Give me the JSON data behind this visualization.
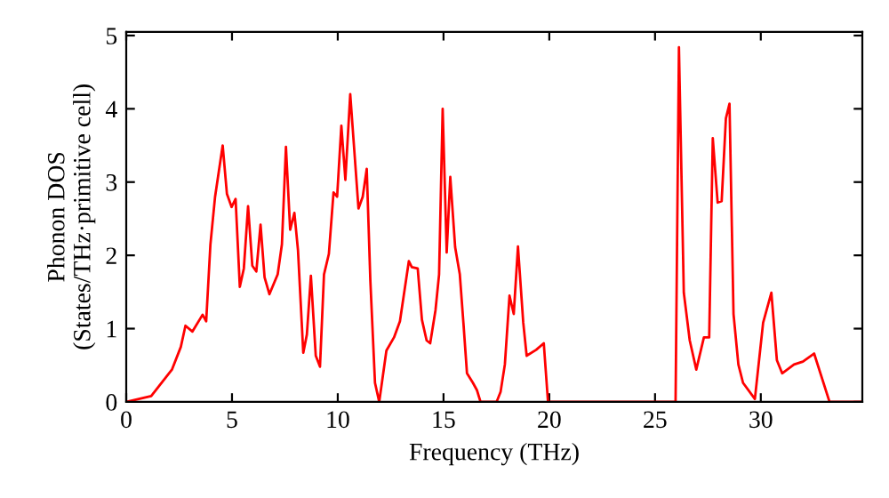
{
  "chart_data": {
    "type": "line",
    "xlabel": "Frequency (THz)",
    "ylabel": "Phonon DOS\n(States/THz·primitive cell)",
    "xlim": [
      0,
      34.8
    ],
    "ylim": [
      0,
      5.05
    ],
    "xticks": [
      0,
      5,
      10,
      15,
      20,
      25,
      30
    ],
    "yticks": [
      0,
      1,
      2,
      3,
      4,
      5
    ],
    "grid": false,
    "legend": false,
    "marker": "none",
    "line_style": "solid",
    "series": [
      {
        "color": "#ff0000",
        "x": [
          0,
          1.18,
          2.16,
          2.58,
          2.8,
          3.13,
          3.61,
          3.78,
          3.98,
          4.2,
          4.56,
          4.76,
          4.98,
          5.17,
          5.37,
          5.56,
          5.76,
          5.96,
          6.15,
          6.35,
          6.54,
          6.77,
          7.16,
          7.36,
          7.55,
          7.75,
          7.95,
          8.12,
          8.37,
          8.54,
          8.73,
          8.96,
          9.16,
          9.35,
          9.58,
          9.8,
          9.97,
          10.17,
          10.36,
          10.59,
          10.78,
          10.98,
          11.18,
          11.37,
          11.54,
          11.76,
          11.96,
          12.3,
          12.66,
          12.94,
          13.36,
          13.5,
          13.78,
          13.98,
          14.2,
          14.37,
          14.62,
          14.79,
          14.96,
          15.15,
          15.32,
          15.55,
          15.77,
          15.94,
          16.11,
          16.39,
          16.58,
          16.75,
          17.51,
          17.7,
          17.9,
          18.12,
          18.32,
          18.52,
          18.77,
          18.93,
          19.38,
          19.74,
          19.94,
          25.97,
          26.13,
          26.36,
          26.64,
          26.95,
          27.31,
          27.56,
          27.73,
          27.96,
          28.15,
          28.35,
          28.52,
          28.71,
          28.94,
          29.16,
          29.72,
          30.11,
          30.5,
          30.76,
          31.01,
          31.57,
          31.99,
          32.52,
          33.25,
          34.8
        ],
        "values": [
          0,
          0.08,
          0.44,
          0.75,
          1.04,
          0.96,
          1.19,
          1.1,
          2.15,
          2.8,
          3.5,
          2.84,
          2.66,
          2.77,
          1.57,
          1.82,
          2.67,
          1.86,
          1.78,
          2.42,
          1.7,
          1.47,
          1.74,
          2.15,
          3.48,
          2.35,
          2.58,
          2.07,
          0.67,
          0.92,
          1.72,
          0.63,
          0.48,
          1.74,
          2.02,
          2.86,
          2.8,
          3.77,
          3.03,
          4.2,
          3.44,
          2.64,
          2.8,
          3.18,
          1.66,
          0.26,
          0,
          0.7,
          0.88,
          1.1,
          1.92,
          1.84,
          1.82,
          1.12,
          0.84,
          0.8,
          1.25,
          1.74,
          4.0,
          2.04,
          3.07,
          2.11,
          1.74,
          1.08,
          0.39,
          0.26,
          0.16,
          0,
          0,
          0.14,
          0.51,
          1.45,
          1.2,
          2.12,
          1.08,
          0.63,
          0.71,
          0.8,
          0,
          0,
          4.84,
          1.49,
          0.84,
          0.44,
          0.88,
          0.88,
          3.6,
          2.72,
          2.74,
          3.87,
          4.07,
          1.2,
          0.51,
          0.26,
          0.04,
          1.08,
          1.49,
          0.57,
          0.39,
          0.51,
          0.55,
          0.66,
          0,
          0
        ]
      }
    ]
  }
}
